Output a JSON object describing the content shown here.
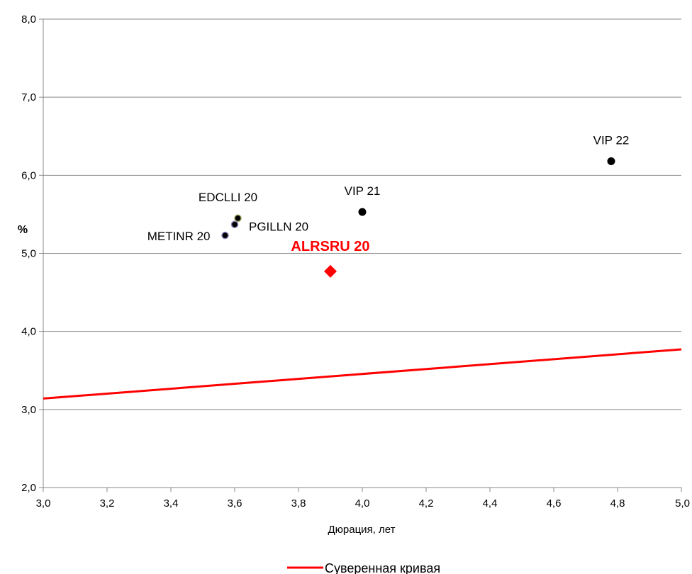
{
  "chart_data": {
    "type": "scatter",
    "title": "",
    "xlabel": "Дюрация, лет",
    "ylabel": "%",
    "xlim": [
      3.0,
      5.0
    ],
    "ylim": [
      2.0,
      8.0
    ],
    "x_ticks": [
      "3,0",
      "3,2",
      "3,4",
      "3,6",
      "3,8",
      "4,0",
      "4,2",
      "4,4",
      "4,6",
      "4,8",
      "5,0"
    ],
    "y_ticks": [
      "2,0",
      "3,0",
      "4,0",
      "5,0",
      "6,0",
      "7,0",
      "8,0"
    ],
    "grid": "horizontal",
    "legend_position": "bottom",
    "points": [
      {
        "label": "VIP 22",
        "x": 4.78,
        "y": 6.18,
        "color": "#000000"
      },
      {
        "label": "VIP 21",
        "x": 4.0,
        "y": 5.53,
        "color": "#000000"
      },
      {
        "label": "EDCLLI 20",
        "x": 3.61,
        "y": 5.45,
        "color": "#000000",
        "stroke": "#9aa05a"
      },
      {
        "label": "PGILLN 20",
        "x": 3.6,
        "y": 5.37,
        "color": "#000000",
        "stroke": "#8e7fb8"
      },
      {
        "label": "METINR 20",
        "x": 3.57,
        "y": 5.23,
        "color": "#000000",
        "stroke": "#8e7fb8"
      },
      {
        "label": "ALRSRU 20",
        "x": 3.9,
        "y": 4.77,
        "color": "#ff0000",
        "marker": "diamond",
        "highlight": true
      }
    ],
    "series": [
      {
        "name": "Суверенная кривая",
        "type": "line",
        "color": "#ff0000",
        "x": [
          3.0,
          5.0
        ],
        "y": [
          3.14,
          3.77
        ]
      }
    ]
  }
}
